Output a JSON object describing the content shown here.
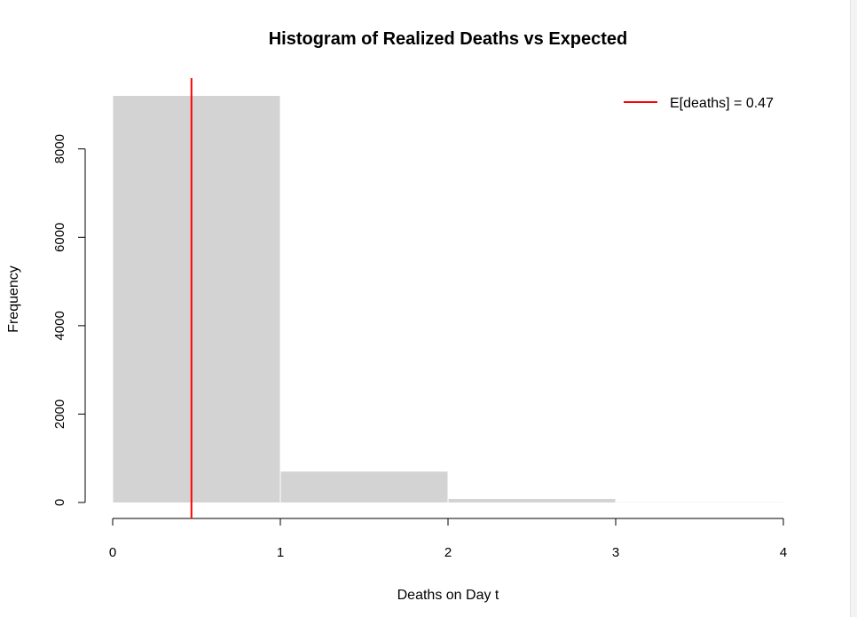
{
  "chart_data": {
    "type": "bar",
    "title": "Histogram of Realized Deaths vs Expected",
    "xlabel": "Deaths on Day t",
    "ylabel": "Frequency",
    "bins": [
      {
        "from": 0,
        "to": 1,
        "value": 9200
      },
      {
        "from": 1,
        "to": 2,
        "value": 700
      },
      {
        "from": 2,
        "to": 3,
        "value": 80
      },
      {
        "from": 3,
        "to": 4,
        "value": 5
      }
    ],
    "xlim": [
      0,
      4
    ],
    "ylim": [
      0,
      9200
    ],
    "x_ticks": [
      "0",
      "1",
      "2",
      "3",
      "4"
    ],
    "y_ticks": [
      "0",
      "2000",
      "4000",
      "6000",
      "8000"
    ],
    "vline": {
      "x": 0.47,
      "color": "#ff0000"
    },
    "legend": {
      "label": "E[deaths] = 0.47",
      "position": "top-right",
      "color": "#ff0000"
    },
    "bar_color": "#d3d3d3",
    "grid": false
  }
}
